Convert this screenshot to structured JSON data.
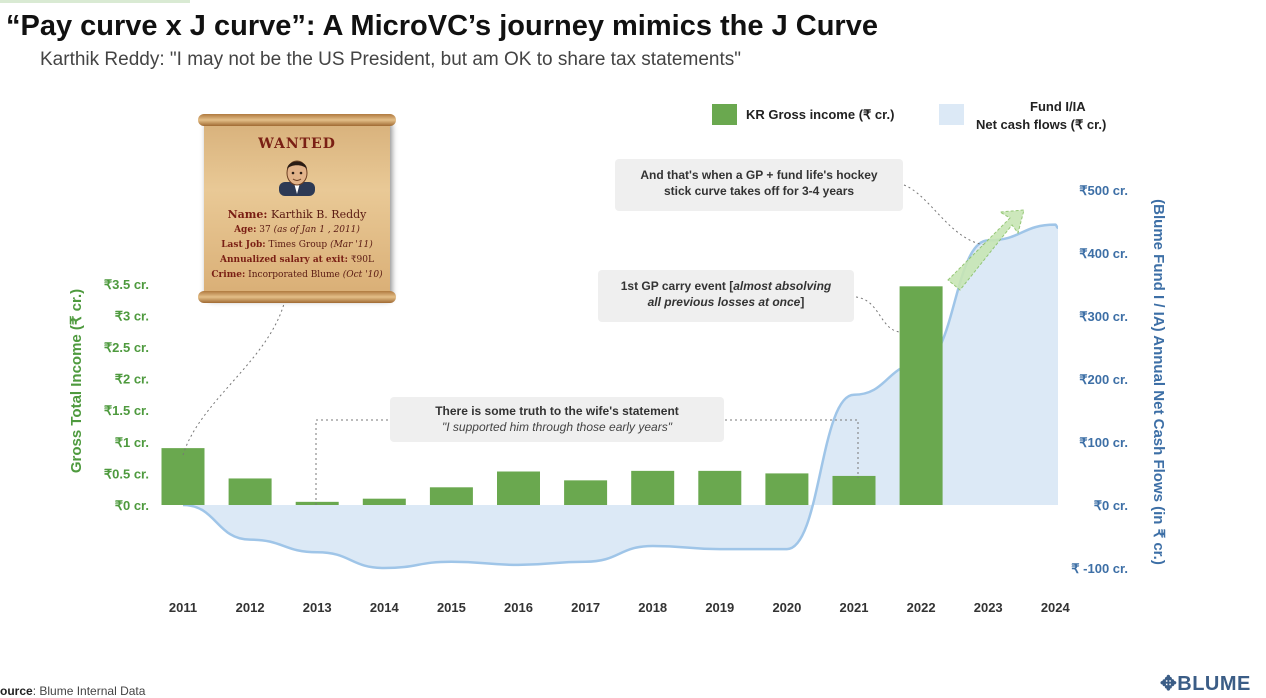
{
  "header": {
    "title": "“Pay curve x J curve”: A MicroVC’s journey mimics the J Curve",
    "subtitle": "Karthik Reddy: \"I may not be the US President, but am OK to share tax statements\""
  },
  "chart_data": {
    "type": "bar+area",
    "categories": [
      "2011",
      "2012",
      "2013",
      "2014",
      "2015",
      "2016",
      "2017",
      "2018",
      "2019",
      "2020",
      "2021",
      "2022",
      "2023",
      "2024"
    ],
    "series": [
      {
        "name": "KR Gross income (₹ cr.)",
        "type": "bar",
        "axis": "left",
        "values": [
          0.9,
          0.42,
          0.05,
          0.1,
          0.28,
          0.53,
          0.39,
          0.54,
          0.54,
          0.5,
          0.46,
          3.46,
          null,
          null
        ]
      },
      {
        "name": "Fund I/IA Net cash flows (₹ cr.)",
        "type": "area",
        "axis": "right",
        "values": [
          0,
          -55,
          -75,
          -100,
          -90,
          -95,
          -90,
          -65,
          -70,
          -70,
          175,
          225,
          420,
          445
        ]
      }
    ],
    "left_axis": {
      "title": "Gross Total Income (₹ cr.)",
      "ylim": [
        0,
        3.5
      ],
      "ticks": [
        "₹0 cr.",
        "₹0.5 cr.",
        "₹1 cr.",
        "₹1.5 cr.",
        "₹2 cr.",
        "₹2.5 cr.",
        "₹3 cr.",
        "₹3.5 cr."
      ]
    },
    "right_axis": {
      "title": "(Blume Fund I / IA) Annual Net Cash Flows (in ₹ cr.)",
      "ylim": [
        -100,
        500
      ],
      "ticks": [
        "₹ -100 cr.",
        "₹0 cr.",
        "₹100 cr.",
        "₹200 cr.",
        "₹300 cr.",
        "₹400 cr.",
        "₹500 cr."
      ]
    },
    "legend": {
      "placement": "top-right",
      "bar_label": "KR Gross income (₹ cr.)",
      "area_label_line1": "Fund I/IA",
      "area_label_line2": "Net cash flows (₹ cr.)"
    },
    "colors": {
      "bar": "#6aa84f",
      "area_fill": "#dce9f6",
      "area_line": "#9fc5e8",
      "left_axis": "#4e9a3e",
      "right_axis": "#3d6fa6"
    },
    "grid": false
  },
  "annotations": {
    "hockey": {
      "line1": "And that's when a GP + fund life's hockey",
      "line2": "stick curve takes off for 3-4 years"
    },
    "carry": {
      "line1_prefix": "1st GP carry event [",
      "line1_italic": "almost absolving",
      "line2_italic": "all previous losses at once",
      "line2_suffix": "]"
    },
    "wife": {
      "line1": "There is some truth to the wife's statement",
      "line2": "\"I supported him through those early years\""
    }
  },
  "poster": {
    "heading": "WANTED",
    "name_label": "Name:",
    "name_value": "Karthik B. Reddy",
    "age_label": "Age:",
    "age_value": "37",
    "age_note": "(as of Jan 1 , 2011)",
    "job_label": "Last Job:",
    "job_value": "Times Group",
    "job_note": "(Mar '11)",
    "salary_label": "Annualized salary at exit:",
    "salary_value": "₹90L",
    "crime_label": "Crime:",
    "crime_value": "Incorporated Blume",
    "crime_note": "(Oct '10)"
  },
  "footer": {
    "source_label": "ource",
    "source_value": ": Blume Internal Data",
    "brand": "BLUME"
  }
}
